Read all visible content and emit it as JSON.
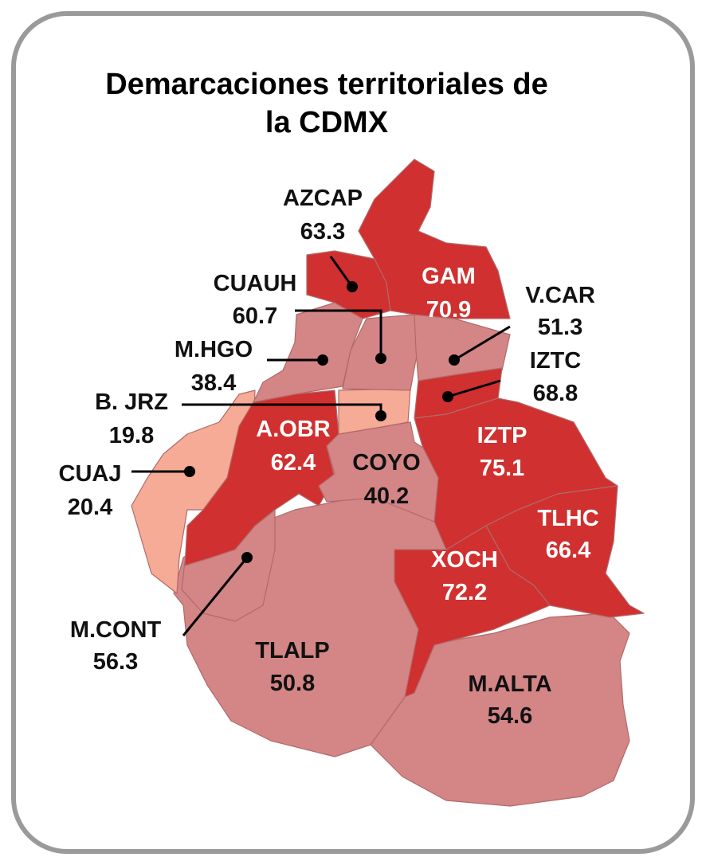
{
  "title": {
    "line1": "Demarcaciones territoriales de",
    "line2": "la CDMX"
  },
  "colors": {
    "high": "#d0302f",
    "mid": "#d48586",
    "low": "#f5ab95",
    "border_frame": "#9a9a9a",
    "label_dark": "#111111",
    "label_light": "#ffffff"
  },
  "regions": [
    {
      "id": "azcap",
      "name": "AZCAP",
      "value": "63.3",
      "level": "high"
    },
    {
      "id": "gam",
      "name": "GAM",
      "value": "70.9",
      "level": "high"
    },
    {
      "id": "cuauh",
      "name": "CUAUH",
      "value": "60.7",
      "level": "mid"
    },
    {
      "id": "vcar",
      "name": "V.CAR",
      "value": "51.3",
      "level": "mid"
    },
    {
      "id": "mhgo",
      "name": "M.HGO",
      "value": "38.4",
      "level": "mid"
    },
    {
      "id": "iztc",
      "name": "IZTC",
      "value": "68.8",
      "level": "high"
    },
    {
      "id": "bjrz",
      "name": "B. JRZ",
      "value": "19.8",
      "level": "low"
    },
    {
      "id": "aobr",
      "name": "A.OBR",
      "value": "62.4",
      "level": "high"
    },
    {
      "id": "iztp",
      "name": "IZTP",
      "value": "75.1",
      "level": "high"
    },
    {
      "id": "cuaj",
      "name": "CUAJ",
      "value": "20.4",
      "level": "low"
    },
    {
      "id": "coyo",
      "name": "COYO",
      "value": "40.2",
      "level": "mid"
    },
    {
      "id": "tlhc",
      "name": "TLHC",
      "value": "66.4",
      "level": "high"
    },
    {
      "id": "xoch",
      "name": "XOCH",
      "value": "72.2",
      "level": "high"
    },
    {
      "id": "mcont",
      "name": "M.CONT",
      "value": "56.3",
      "level": "mid"
    },
    {
      "id": "tlalp",
      "name": "TLALP",
      "value": "50.8",
      "level": "mid"
    },
    {
      "id": "malta",
      "name": "M.ALTA",
      "value": "54.6",
      "level": "mid"
    }
  ]
}
